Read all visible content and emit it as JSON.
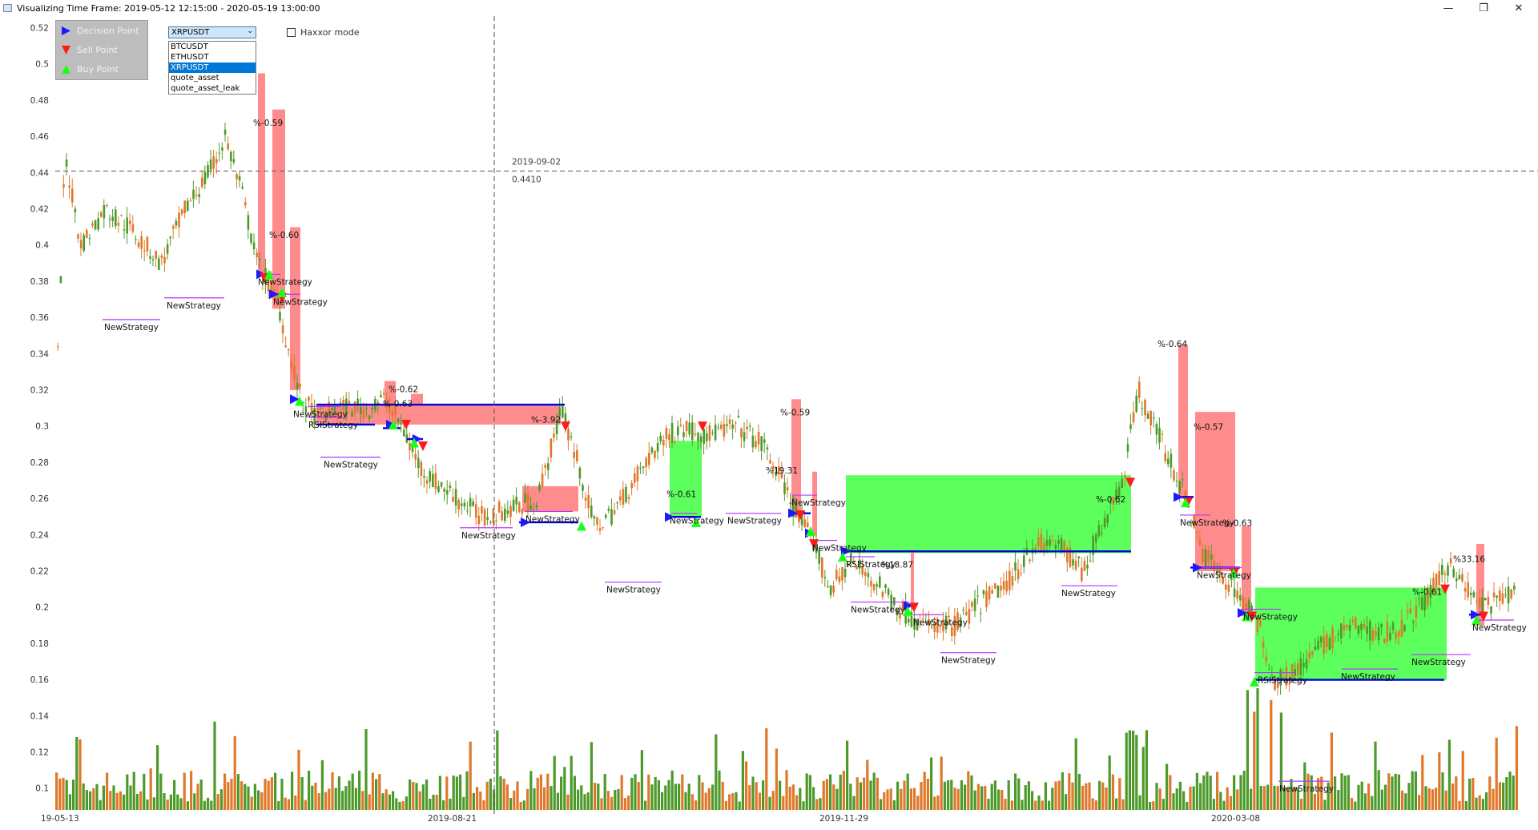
{
  "window": {
    "title": "Visualizing Time Frame: 2019-05-12 12:15:00 - 2020-05-19 13:00:00",
    "minimize_icon": "minimize-icon",
    "restore_icon": "restore-icon",
    "close_icon": "close-icon"
  },
  "legend": {
    "items": [
      {
        "label": "Decision Point",
        "icon": "blue-right-triangle",
        "color": "#1a1aff"
      },
      {
        "label": "Sell Point",
        "icon": "red-down-triangle",
        "color": "#ff1a1a"
      },
      {
        "label": "Buy Point",
        "icon": "green-up-triangle",
        "color": "#1aff1a"
      }
    ]
  },
  "symbol_select": {
    "value": "XRPUSDT",
    "options": [
      "BTCUSDT",
      "ETHUSDT",
      "XRPUSDT",
      "quote_asset",
      "quote_asset_leak"
    ]
  },
  "haxxor": {
    "label": "Haxxor mode",
    "checked": false
  },
  "crosshair": {
    "date": "2019-09-02",
    "value": "0.4410"
  },
  "chart_data": {
    "type": "candlestick",
    "symbol": "XRPUSDT",
    "y_ticks": [
      "0.52",
      "0.5",
      "0.48",
      "0.46",
      "0.44",
      "0.42",
      "0.4",
      "0.38",
      "0.36",
      "0.34",
      "0.32",
      "0.3",
      "0.28",
      "0.26",
      "0.24",
      "0.22",
      "0.2",
      "0.18",
      "0.16",
      "0.14",
      "0.12",
      "0.1"
    ],
    "x_ticks": [
      "19-05-13",
      "2019-08-21",
      "2019-11-29",
      "2020-03-08"
    ],
    "colors": {
      "up": "#4d9a2a",
      "down": "#e0782a",
      "loss_zone": "#ff8c8c",
      "profit_zone": "#5cff5c",
      "entry_line": "#0000dd",
      "strategy_line": "#b833ff"
    },
    "trades": [
      {
        "pct": "%-0.59"
      },
      {
        "pct": "%-0.60"
      },
      {
        "pct": "%-0.62"
      },
      {
        "pct": "%-0.63"
      },
      {
        "pct": "%-3.92"
      },
      {
        "pct": "%-0.61"
      },
      {
        "pct": "%19.31"
      },
      {
        "pct": "%-0.59"
      },
      {
        "pct": "%-0.62"
      },
      {
        "pct": "%18.87"
      },
      {
        "pct": "%-0.64"
      },
      {
        "pct": "%-0.57"
      },
      {
        "pct": "%-0.63"
      },
      {
        "pct": "%-0.61"
      },
      {
        "pct": "%33.16"
      },
      {
        "pct": "%-0.57"
      }
    ],
    "strategy_labels": [
      "NewStrategy",
      "RSIStrategy"
    ]
  }
}
